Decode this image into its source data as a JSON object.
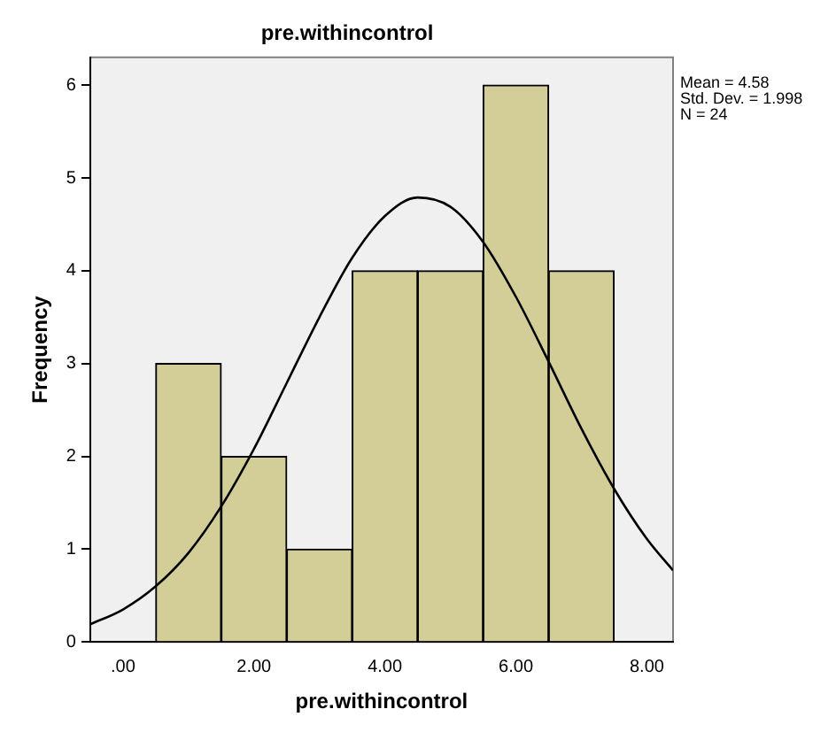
{
  "chart_data": {
    "type": "histogram",
    "title": "pre.withincontrol",
    "xlabel": "pre.withincontrol",
    "ylabel": "Frequency",
    "series": [
      {
        "bins": [
          0.5,
          1.5,
          2.5,
          3.5,
          4.5,
          5.5,
          6.5,
          7.5
        ],
        "values": [
          3,
          2,
          1,
          4,
          4,
          6,
          4
        ],
        "color": "#d3ce97"
      },
      {
        "type": "line",
        "color": "#000000",
        "x": [
          -0.5,
          0,
          0.5,
          1,
          1.5,
          2,
          2.5,
          3,
          3.5,
          4,
          4.5,
          5,
          5.5,
          6,
          6.5,
          7,
          7.5,
          8,
          8.4
        ],
        "values": [
          0.19,
          0.35,
          0.6,
          0.96,
          1.46,
          2.08,
          2.79,
          3.5,
          4.14,
          4.59,
          4.79,
          4.69,
          4.31,
          3.72,
          3.02,
          2.3,
          1.65,
          1.11,
          0.77
        ]
      }
    ],
    "xlim": [
      -0.5,
      8.4
    ],
    "xticks": [
      {
        "value": 0,
        "label": ".00"
      },
      {
        "value": 2,
        "label": "2.00"
      },
      {
        "value": 4,
        "label": "4.00"
      },
      {
        "value": 6,
        "label": "6.00"
      },
      {
        "value": 8,
        "label": "8.00"
      }
    ],
    "ylim": [
      0,
      6.3
    ],
    "yticks": [
      0,
      1,
      2,
      3,
      4,
      5,
      6
    ],
    "grid": false,
    "legend": false,
    "marker": "none",
    "annotations": [
      "Mean = 4.58",
      "Std. Dev. = 1.998",
      "N = 24"
    ]
  }
}
